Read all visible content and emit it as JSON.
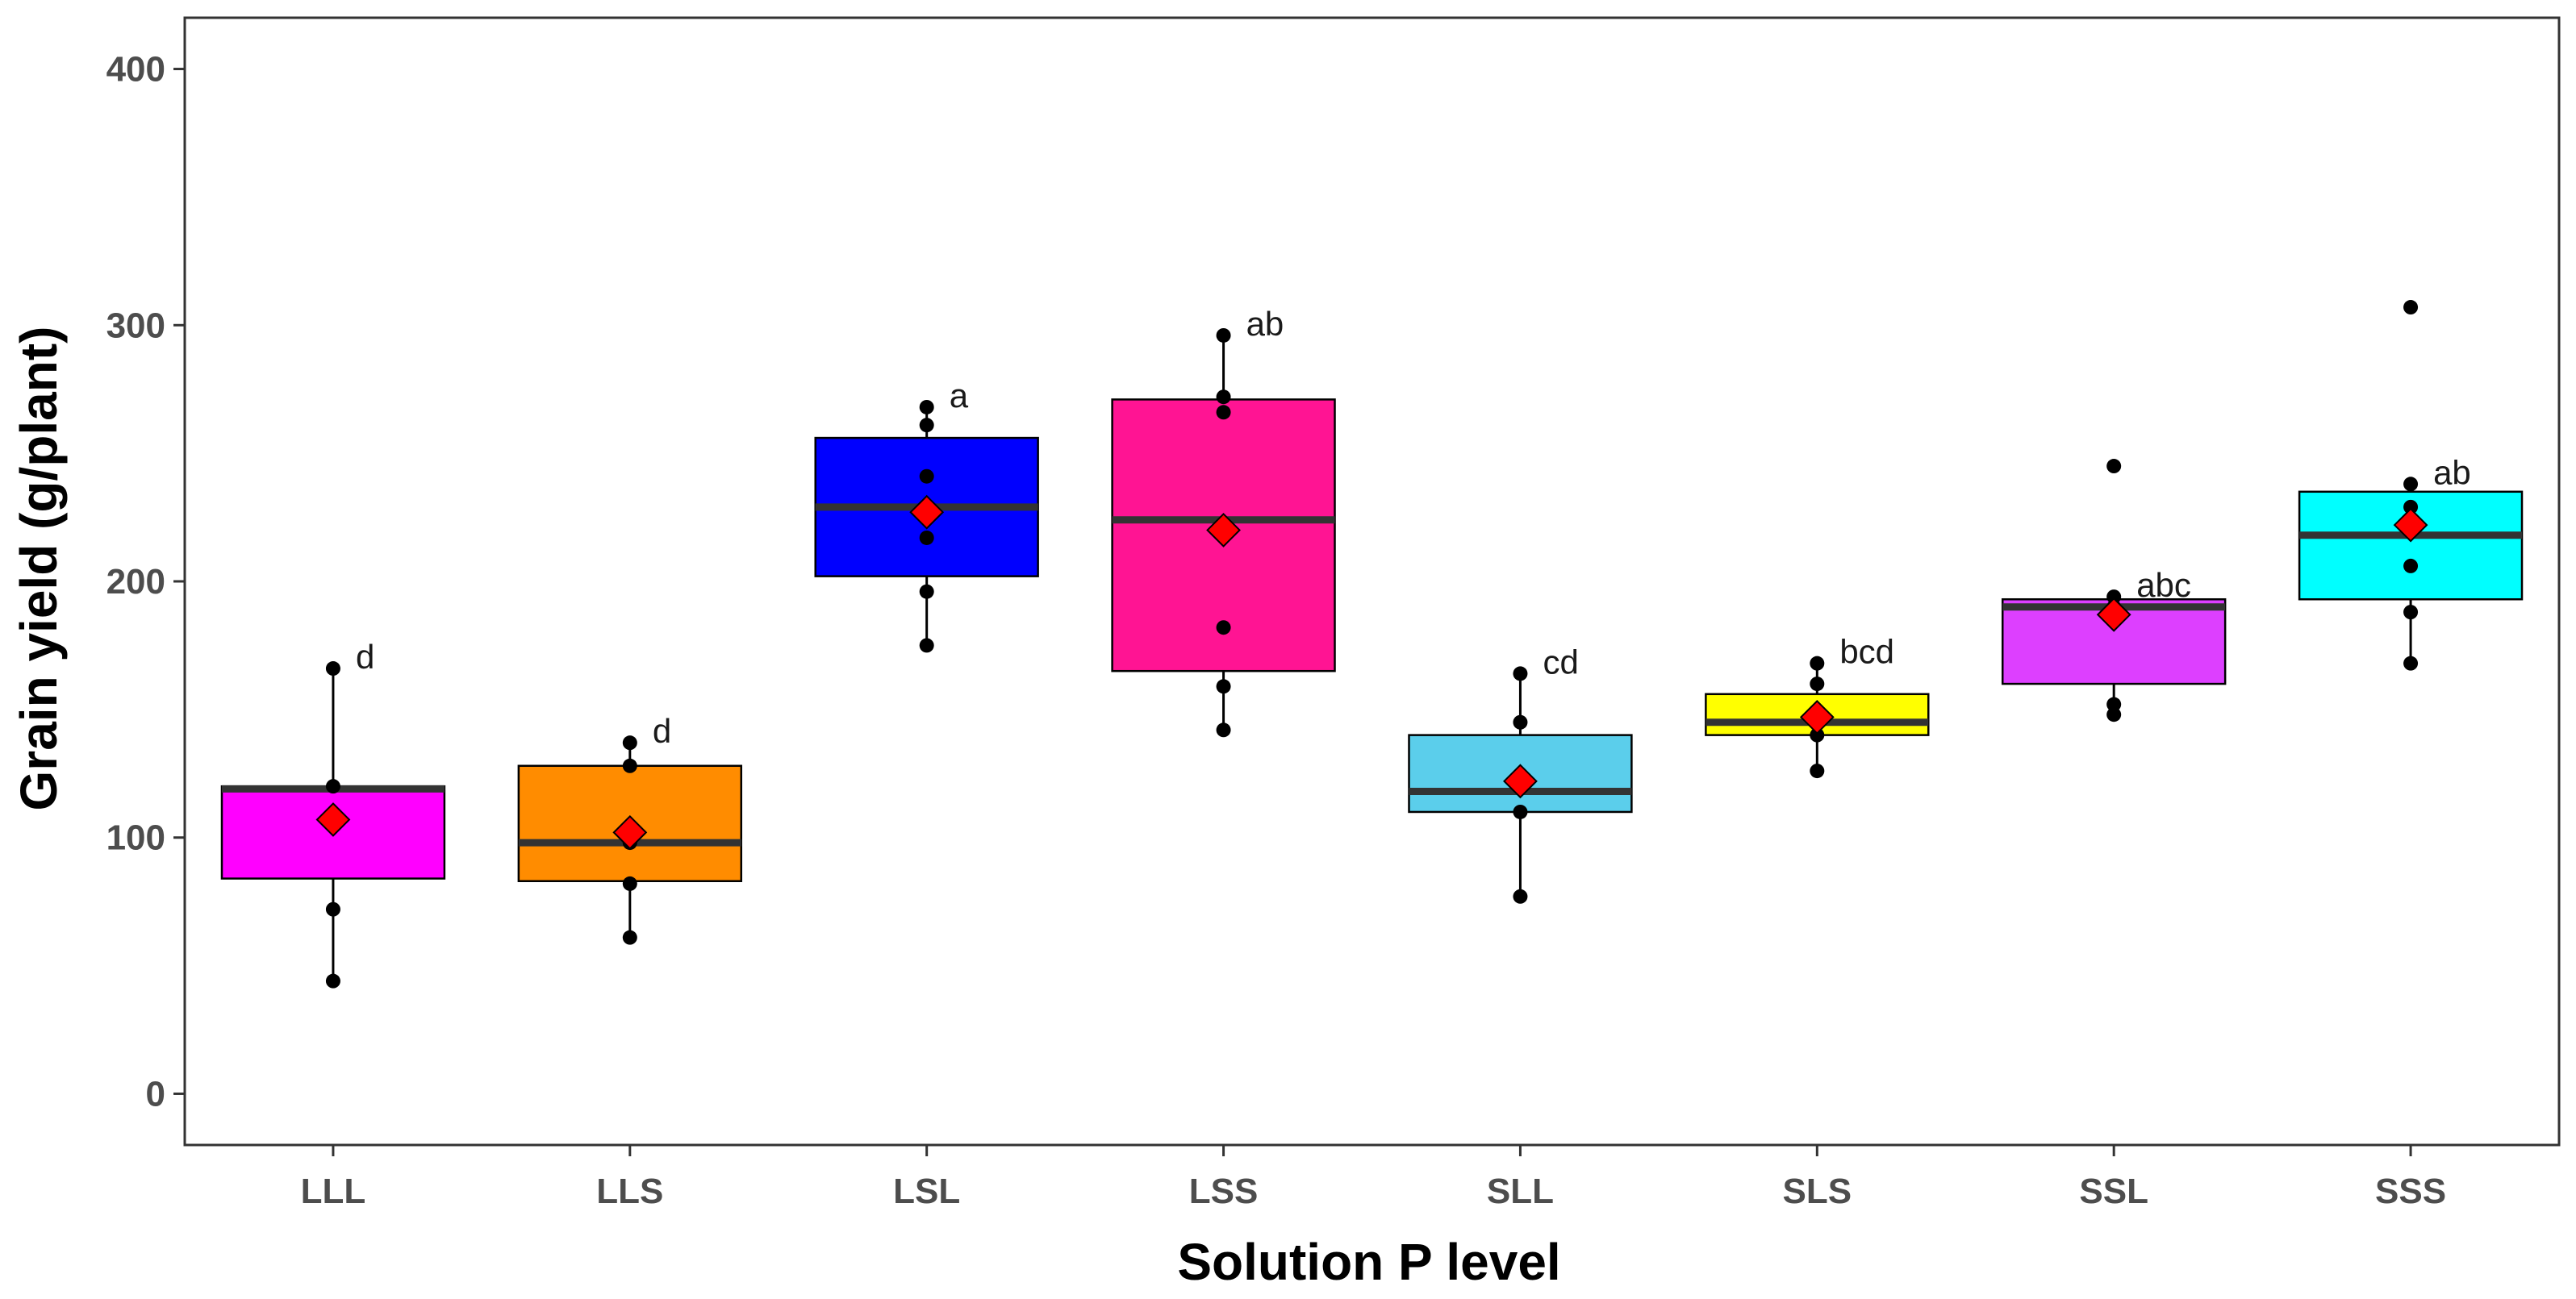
{
  "chart_data": {
    "type": "box",
    "title": "",
    "xlabel": "Solution P level",
    "ylabel": "Grain yield (g/plant)",
    "ylim": [
      -20,
      420
    ],
    "yticks": [
      0,
      100,
      200,
      300,
      400
    ],
    "grid": false,
    "categories": [
      "LLL",
      "LLS",
      "LSL",
      "LSS",
      "SLL",
      "SLS",
      "SSL",
      "SSS"
    ],
    "boxes": [
      {
        "category": "LLL",
        "fill": "#FF00FF",
        "q1": 84,
        "median": 119,
        "q3": 120,
        "whisker_low": 44,
        "whisker_high": 166,
        "mean": 107,
        "points": [
          44,
          72,
          107,
          120,
          166
        ],
        "letter": "d"
      },
      {
        "category": "LLS",
        "fill": "#FF8C00",
        "q1": 83,
        "median": 98,
        "q3": 128,
        "whisker_low": 61,
        "whisker_high": 137,
        "mean": 102,
        "points": [
          61,
          82,
          98,
          128,
          137
        ],
        "letter": "d"
      },
      {
        "category": "LSL",
        "fill": "#0000FF",
        "q1": 202,
        "median": 229,
        "q3": 256,
        "whisker_low": 175,
        "whisker_high": 268,
        "mean": 227,
        "points": [
          175,
          196,
          217,
          241,
          261,
          268
        ],
        "letter": "a"
      },
      {
        "category": "LSS",
        "fill": "#FF1493",
        "q1": 165,
        "median": 224,
        "q3": 271,
        "whisker_low": 142,
        "whisker_high": 296,
        "mean": 220,
        "points": [
          142,
          159,
          182,
          266,
          272,
          296
        ],
        "letter": "ab"
      },
      {
        "category": "SLL",
        "fill": "#5BCEEB",
        "q1": 110,
        "median": 118,
        "q3": 140,
        "whisker_low": 77,
        "whisker_high": 164,
        "mean": 122,
        "points": [
          77,
          110,
          120,
          145,
          164
        ],
        "letter": "cd"
      },
      {
        "category": "SLS",
        "fill": "#FFFF00",
        "q1": 140,
        "median": 145,
        "q3": 156,
        "whisker_low": 126,
        "whisker_high": 168,
        "mean": 147,
        "points": [
          126,
          140,
          145,
          160,
          168
        ],
        "letter": "bcd"
      },
      {
        "category": "SSL",
        "fill": "#DD3FFF",
        "q1": 160,
        "median": 190,
        "q3": 193,
        "whisker_low": 148,
        "whisker_high": 194,
        "mean": 187,
        "points": [
          148,
          152,
          190,
          194,
          245
        ],
        "letter": "abc"
      },
      {
        "category": "SSS",
        "fill": "#00FFFF",
        "q1": 193,
        "median": 218,
        "q3": 235,
        "whisker_low": 168,
        "whisker_high": 238,
        "mean": 222,
        "points": [
          168,
          188,
          206,
          229,
          238,
          307
        ],
        "letter": "ab"
      }
    ]
  }
}
